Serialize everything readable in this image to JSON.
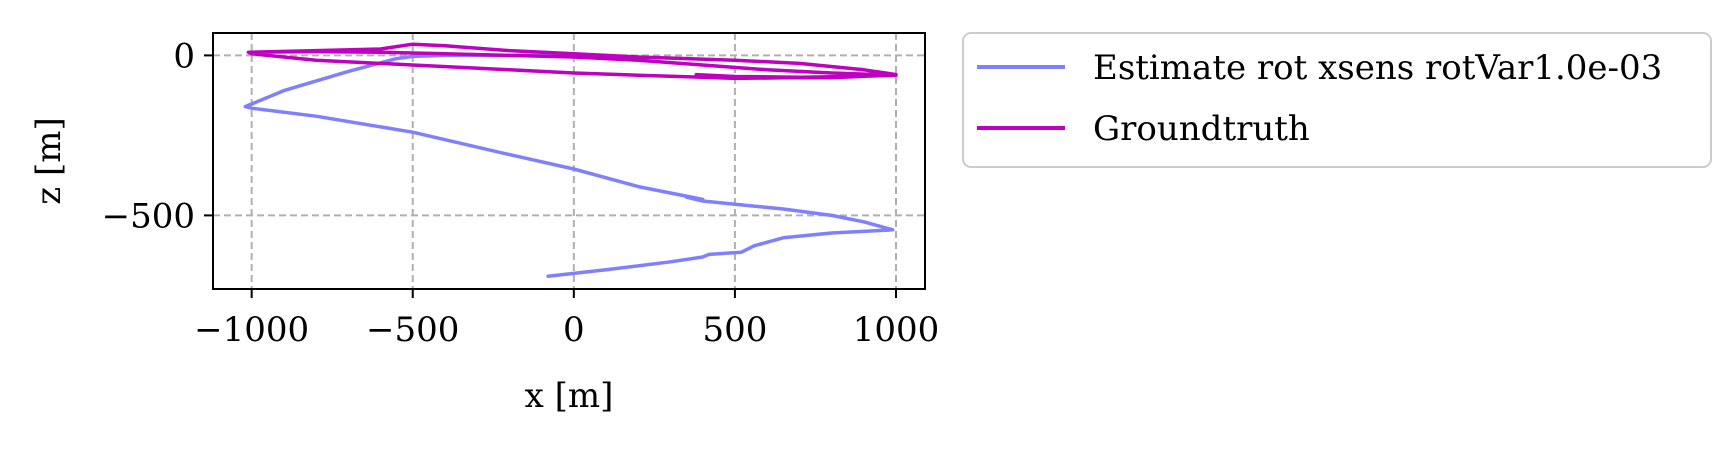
{
  "chart_data": {
    "type": "line",
    "title": "",
    "xlabel": "x [m]",
    "ylabel": "z [m]",
    "xlim": [
      -1120,
      1090
    ],
    "ylim": [
      -730,
      70
    ],
    "xticks": [
      -1000,
      -500,
      0,
      500,
      1000
    ],
    "xtick_labels": [
      "−1000",
      "−500",
      "0",
      "500",
      "1000"
    ],
    "yticks": [
      0,
      -500
    ],
    "ytick_labels": [
      "0",
      "−500"
    ],
    "grid": true,
    "legend_position": "outside-right",
    "series": [
      {
        "name": "Estimate rot xsens rotVar1.0e-03",
        "color": "#8080ff",
        "points": [
          [
            -80,
            -690
          ],
          [
            100,
            -670
          ],
          [
            300,
            -645
          ],
          [
            400,
            -630
          ],
          [
            420,
            -622
          ],
          [
            520,
            -615
          ],
          [
            560,
            -595
          ],
          [
            650,
            -570
          ],
          [
            800,
            -555
          ],
          [
            990,
            -545
          ],
          [
            900,
            -520
          ],
          [
            800,
            -500
          ],
          [
            650,
            -480
          ],
          [
            500,
            -465
          ],
          [
            400,
            -455
          ],
          [
            350,
            -443
          ],
          [
            400,
            -450
          ],
          [
            200,
            -410
          ],
          [
            0,
            -355
          ],
          [
            -200,
            -310
          ],
          [
            -500,
            -240
          ],
          [
            -800,
            -190
          ],
          [
            -1000,
            -165
          ],
          [
            -1020,
            -160
          ],
          [
            -900,
            -110
          ],
          [
            -700,
            -50
          ],
          [
            -550,
            -10
          ],
          [
            -500,
            -3
          ],
          [
            -400,
            0
          ],
          [
            -200,
            0
          ],
          [
            0,
            0
          ]
        ]
      },
      {
        "name": "Groundtruth",
        "color": "#c000c0",
        "points": [
          [
            -1000,
            10
          ],
          [
            -800,
            15
          ],
          [
            -600,
            20
          ],
          [
            -500,
            35
          ],
          [
            -400,
            30
          ],
          [
            -200,
            15
          ],
          [
            0,
            5
          ],
          [
            200,
            -5
          ],
          [
            500,
            -15
          ],
          [
            700,
            -25
          ],
          [
            900,
            -45
          ],
          [
            1000,
            -60
          ],
          [
            900,
            -65
          ],
          [
            800,
            -70
          ],
          [
            650,
            -70
          ],
          [
            500,
            -72
          ],
          [
            400,
            -68
          ],
          [
            200,
            -62
          ],
          [
            0,
            -55
          ],
          [
            -200,
            -45
          ],
          [
            -500,
            -30
          ],
          [
            -800,
            -15
          ],
          [
            -1000,
            5
          ],
          [
            -1010,
            10
          ],
          [
            -800,
            12
          ],
          [
            -600,
            10
          ],
          [
            -400,
            5
          ],
          [
            -200,
            0
          ],
          [
            0,
            -5
          ],
          [
            200,
            -15
          ],
          [
            400,
            -30
          ],
          [
            600,
            -45
          ],
          [
            800,
            -55
          ],
          [
            1000,
            -62
          ],
          [
            900,
            -65
          ],
          [
            700,
            -68
          ],
          [
            500,
            -66
          ],
          [
            380,
            -60
          ]
        ]
      }
    ]
  }
}
